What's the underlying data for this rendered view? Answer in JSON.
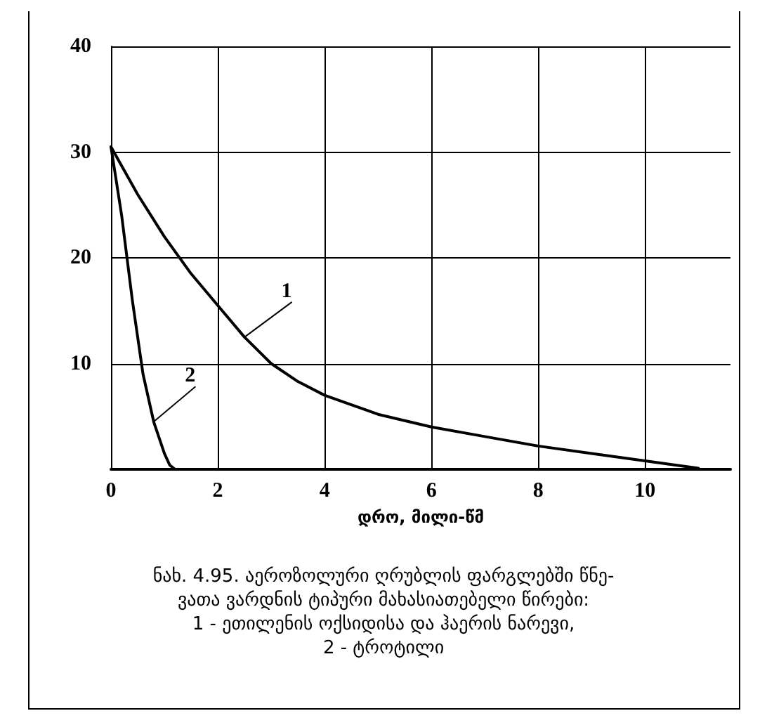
{
  "chart_data": {
    "type": "line",
    "xlabel": "დრო, მილი-წმ",
    "x": [
      0,
      0.5,
      1,
      1.5,
      2,
      2.5,
      3,
      3.5,
      4,
      5,
      6,
      7,
      8,
      9,
      10,
      11
    ],
    "series": [
      {
        "name": "1",
        "color": "#000000",
        "values": [
          30.5,
          26,
          22,
          18.5,
          15.5,
          12.5,
          10,
          8.3,
          7,
          5.2,
          4,
          3.1,
          2.2,
          1.5,
          0.8,
          0.1
        ]
      },
      {
        "name": "2",
        "color": "#000000",
        "x": [
          0,
          0.2,
          0.4,
          0.6,
          0.8,
          1,
          1.1,
          1.2,
          1.4
        ],
        "values": [
          30.5,
          24,
          16,
          9,
          4.5,
          1.5,
          0.4,
          0,
          0
        ]
      }
    ],
    "xlim": [
      0,
      11.6
    ],
    "xticks": [
      0,
      2,
      4,
      6,
      8,
      10
    ],
    "ylim": [
      0,
      40
    ],
    "yticks": [
      10,
      20,
      30,
      40
    ],
    "grid": true,
    "legend": false,
    "marker": "none",
    "line_style": "solid",
    "annotations": [
      "ნახ. 4.95. აეროზოლური ღრუბლის ფარგლებში წნე-\nვათა ვარდნის ტიპური მახასიათებელი წირები:\n1 - ეთილენის ოქსიდისა და ჰაერის ნარევი,\n2 - ტროტილი"
    ]
  }
}
